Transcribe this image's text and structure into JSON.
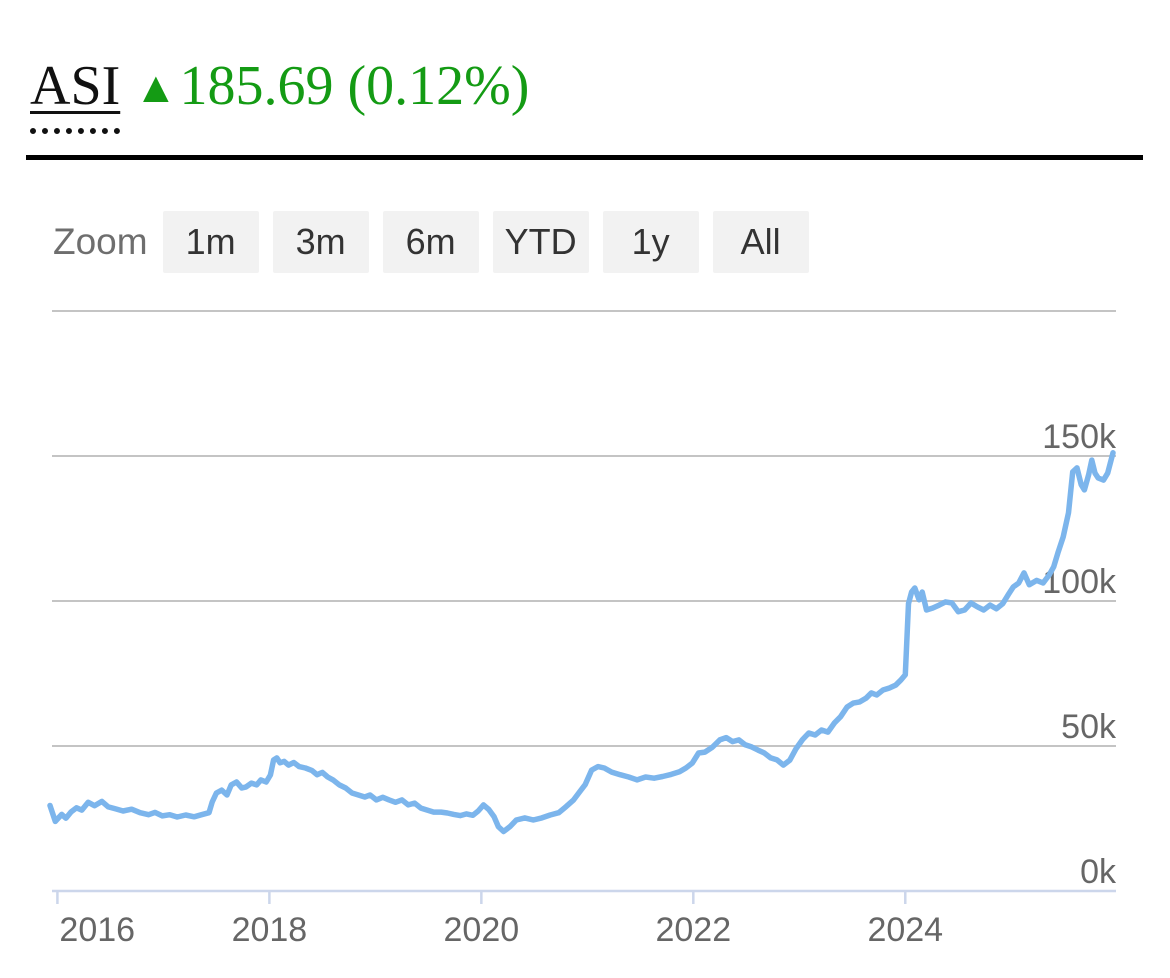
{
  "header": {
    "symbol": "ASI",
    "arrow": "▲",
    "change": "185.69",
    "change_pct": "(0.12%)",
    "direction": "up"
  },
  "toolbar": {
    "label": "Zoom",
    "buttons": [
      "1m",
      "3m",
      "6m",
      "YTD",
      "1y",
      "All"
    ]
  },
  "colors": {
    "up_green": "#149b14",
    "series_line": "#7cb5ec",
    "gridline": "#c4c4c4",
    "axis_line": "#ccd6eb",
    "axis_label": "#666666",
    "button_bg": "#f2f2f2",
    "button_text": "#333333"
  },
  "chart_data": {
    "type": "line",
    "title": "",
    "xlabel": "",
    "ylabel": "",
    "unit": "index points (thousands, k)",
    "grid": true,
    "legend": "none",
    "xlim": [
      2015.93,
      2025.96
    ],
    "ylim": [
      0,
      200
    ],
    "xticks": [
      {
        "v": 2016,
        "label": "2016"
      },
      {
        "v": 2018,
        "label": "2018"
      },
      {
        "v": 2020,
        "label": "2020"
      },
      {
        "v": 2022,
        "label": "2022"
      },
      {
        "v": 2024,
        "label": "2024"
      }
    ],
    "yticks": [
      {
        "v": 0,
        "label": "0k"
      },
      {
        "v": 50,
        "label": "50k"
      },
      {
        "v": 100,
        "label": "100k"
      },
      {
        "v": 150,
        "label": "150k"
      },
      {
        "v": 200,
        "label": ""
      }
    ],
    "series": [
      {
        "name": "ASI",
        "color": "#7cb5ec",
        "points": [
          [
            2015.93,
            29.5
          ],
          [
            2015.98,
            24.0
          ],
          [
            2016.04,
            26.4
          ],
          [
            2016.08,
            25.1
          ],
          [
            2016.13,
            27.3
          ],
          [
            2016.18,
            28.7
          ],
          [
            2016.23,
            27.9
          ],
          [
            2016.29,
            30.6
          ],
          [
            2016.35,
            29.4
          ],
          [
            2016.42,
            30.9
          ],
          [
            2016.48,
            29.0
          ],
          [
            2016.55,
            28.3
          ],
          [
            2016.62,
            27.6
          ],
          [
            2016.7,
            28.2
          ],
          [
            2016.78,
            27.0
          ],
          [
            2016.86,
            26.3
          ],
          [
            2016.92,
            27.1
          ],
          [
            2016.99,
            25.9
          ],
          [
            2017.06,
            26.3
          ],
          [
            2017.13,
            25.5
          ],
          [
            2017.21,
            26.2
          ],
          [
            2017.29,
            25.6
          ],
          [
            2017.36,
            26.3
          ],
          [
            2017.43,
            27.0
          ],
          [
            2017.46,
            30.7
          ],
          [
            2017.5,
            33.8
          ],
          [
            2017.55,
            34.8
          ],
          [
            2017.6,
            33.1
          ],
          [
            2017.64,
            36.6
          ],
          [
            2017.69,
            37.6
          ],
          [
            2017.74,
            35.5
          ],
          [
            2017.78,
            35.9
          ],
          [
            2017.83,
            37.2
          ],
          [
            2017.88,
            36.6
          ],
          [
            2017.92,
            38.3
          ],
          [
            2017.97,
            37.6
          ],
          [
            2018.01,
            40.0
          ],
          [
            2018.04,
            45.2
          ],
          [
            2018.07,
            45.9
          ],
          [
            2018.1,
            44.2
          ],
          [
            2018.14,
            44.7
          ],
          [
            2018.18,
            43.4
          ],
          [
            2018.23,
            44.3
          ],
          [
            2018.28,
            42.9
          ],
          [
            2018.34,
            42.4
          ],
          [
            2018.4,
            41.6
          ],
          [
            2018.45,
            40.1
          ],
          [
            2018.5,
            40.9
          ],
          [
            2018.55,
            39.3
          ],
          [
            2018.6,
            38.3
          ],
          [
            2018.66,
            36.6
          ],
          [
            2018.72,
            35.5
          ],
          [
            2018.78,
            33.8
          ],
          [
            2018.84,
            33.1
          ],
          [
            2018.9,
            32.4
          ],
          [
            2018.95,
            33.1
          ],
          [
            2019.01,
            31.4
          ],
          [
            2019.07,
            32.3
          ],
          [
            2019.13,
            31.4
          ],
          [
            2019.19,
            30.6
          ],
          [
            2019.25,
            31.4
          ],
          [
            2019.31,
            29.7
          ],
          [
            2019.37,
            30.3
          ],
          [
            2019.43,
            28.6
          ],
          [
            2019.49,
            27.9
          ],
          [
            2019.55,
            27.2
          ],
          [
            2019.62,
            27.2
          ],
          [
            2019.68,
            26.9
          ],
          [
            2019.74,
            26.4
          ],
          [
            2019.8,
            26.0
          ],
          [
            2019.86,
            26.6
          ],
          [
            2019.92,
            26.1
          ],
          [
            2019.97,
            27.6
          ],
          [
            2020.02,
            29.7
          ],
          [
            2020.07,
            28.1
          ],
          [
            2020.12,
            25.6
          ],
          [
            2020.16,
            22.2
          ],
          [
            2020.21,
            20.5
          ],
          [
            2020.27,
            22.2
          ],
          [
            2020.33,
            24.5
          ],
          [
            2020.41,
            25.2
          ],
          [
            2020.49,
            24.5
          ],
          [
            2020.57,
            25.2
          ],
          [
            2020.65,
            26.2
          ],
          [
            2020.73,
            27.0
          ],
          [
            2020.8,
            29.1
          ],
          [
            2020.87,
            31.4
          ],
          [
            2020.93,
            34.3
          ],
          [
            2020.98,
            36.7
          ],
          [
            2021.04,
            41.7
          ],
          [
            2021.1,
            42.9
          ],
          [
            2021.16,
            42.4
          ],
          [
            2021.23,
            41.0
          ],
          [
            2021.31,
            40.1
          ],
          [
            2021.39,
            39.3
          ],
          [
            2021.47,
            38.3
          ],
          [
            2021.55,
            39.3
          ],
          [
            2021.63,
            38.9
          ],
          [
            2021.71,
            39.5
          ],
          [
            2021.79,
            40.2
          ],
          [
            2021.87,
            41.1
          ],
          [
            2021.93,
            42.4
          ],
          [
            2021.99,
            44.1
          ],
          [
            2022.05,
            47.6
          ],
          [
            2022.11,
            47.9
          ],
          [
            2022.18,
            49.6
          ],
          [
            2022.25,
            52.1
          ],
          [
            2022.31,
            52.9
          ],
          [
            2022.37,
            51.5
          ],
          [
            2022.43,
            52.1
          ],
          [
            2022.49,
            50.4
          ],
          [
            2022.55,
            49.7
          ],
          [
            2022.61,
            48.6
          ],
          [
            2022.67,
            47.6
          ],
          [
            2022.73,
            45.9
          ],
          [
            2022.79,
            45.2
          ],
          [
            2022.85,
            43.4
          ],
          [
            2022.91,
            45.1
          ],
          [
            2022.97,
            49.1
          ],
          [
            2023.03,
            52.2
          ],
          [
            2023.09,
            54.5
          ],
          [
            2023.15,
            53.8
          ],
          [
            2023.21,
            55.5
          ],
          [
            2023.27,
            54.8
          ],
          [
            2023.33,
            57.9
          ],
          [
            2023.39,
            60.1
          ],
          [
            2023.45,
            63.4
          ],
          [
            2023.51,
            64.8
          ],
          [
            2023.57,
            65.2
          ],
          [
            2023.63,
            66.5
          ],
          [
            2023.68,
            68.3
          ],
          [
            2023.73,
            67.6
          ],
          [
            2023.79,
            69.3
          ],
          [
            2023.85,
            70.0
          ],
          [
            2023.91,
            71.0
          ],
          [
            2023.96,
            72.8
          ],
          [
            2024.0,
            74.6
          ],
          [
            2024.03,
            99.1
          ],
          [
            2024.06,
            103.1
          ],
          [
            2024.09,
            104.5
          ],
          [
            2024.13,
            100.4
          ],
          [
            2024.16,
            103.1
          ],
          [
            2024.2,
            96.9
          ],
          [
            2024.26,
            97.6
          ],
          [
            2024.32,
            98.6
          ],
          [
            2024.38,
            99.7
          ],
          [
            2024.44,
            99.3
          ],
          [
            2024.5,
            96.3
          ],
          [
            2024.56,
            96.9
          ],
          [
            2024.62,
            99.3
          ],
          [
            2024.68,
            98.0
          ],
          [
            2024.74,
            96.9
          ],
          [
            2024.8,
            98.6
          ],
          [
            2024.86,
            97.3
          ],
          [
            2024.92,
            99.1
          ],
          [
            2024.97,
            102.1
          ],
          [
            2025.02,
            104.9
          ],
          [
            2025.07,
            106.2
          ],
          [
            2025.12,
            109.7
          ],
          [
            2025.17,
            105.6
          ],
          [
            2025.24,
            107.1
          ],
          [
            2025.3,
            106.2
          ],
          [
            2025.36,
            109.1
          ],
          [
            2025.4,
            111.8
          ],
          [
            2025.44,
            116.6
          ],
          [
            2025.49,
            122.1
          ],
          [
            2025.54,
            130.4
          ],
          [
            2025.58,
            144.5
          ],
          [
            2025.62,
            145.9
          ],
          [
            2025.66,
            140.1
          ],
          [
            2025.69,
            138.3
          ],
          [
            2025.73,
            143.5
          ],
          [
            2025.76,
            148.6
          ],
          [
            2025.79,
            144.1
          ],
          [
            2025.82,
            142.4
          ],
          [
            2025.87,
            141.7
          ],
          [
            2025.91,
            144.1
          ],
          [
            2025.96,
            151.1
          ]
        ]
      }
    ]
  }
}
